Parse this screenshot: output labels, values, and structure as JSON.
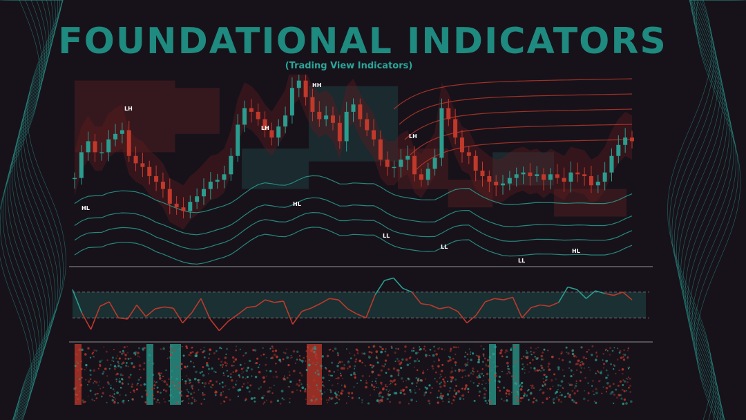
{
  "header": {
    "title": "FOUNDATIONAL INDICATORS",
    "subtitle": "(Trading View Indicators)"
  },
  "colors": {
    "background": "#17121a",
    "accent": "#1f8a7f",
    "teal": "#2a9d8f",
    "red": "#c0392b"
  },
  "chart_data": [
    {
      "type": "line",
      "panel": "price",
      "series": [
        {
          "values": [
            46,
            60,
            66,
            60,
            60,
            67,
            70,
            72,
            58,
            54,
            52,
            47,
            44,
            40,
            32,
            30,
            28,
            33,
            36,
            40,
            44,
            45,
            48,
            58,
            75,
            84,
            82,
            78,
            72,
            68,
            74,
            80,
            95,
            99,
            90,
            82,
            78,
            80,
            76,
            66,
            82,
            86,
            78,
            72,
            67,
            56,
            52,
            52,
            56,
            58,
            48,
            45,
            51,
            57,
            84,
            78,
            68,
            60,
            58,
            50,
            47,
            44,
            42,
            43,
            46,
            48,
            49,
            47,
            48,
            45,
            48,
            46,
            44,
            49,
            48,
            47,
            42,
            44,
            49,
            58,
            64,
            68,
            66
          ]
        }
      ],
      "annotations": [
        "LH",
        "HL",
        "LH",
        "HL",
        "HH",
        "LH",
        "LL",
        "LL",
        "LL",
        "HL"
      ]
    },
    {
      "type": "line",
      "panel": "oscillator",
      "series": [
        {
          "values": [
            74,
            38,
            12,
            48,
            55,
            30,
            28,
            50,
            32,
            44,
            47,
            45,
            22,
            38,
            60,
            28,
            10,
            25,
            35,
            46,
            48,
            58,
            54,
            56,
            20,
            40,
            45,
            52,
            60,
            58,
            44,
            36,
            30,
            66,
            88,
            92,
            76,
            70,
            52,
            50,
            44,
            47,
            40,
            22,
            34,
            55,
            60,
            58,
            62,
            30,
            46,
            50,
            48,
            54,
            78,
            74,
            60,
            72,
            68,
            65,
            70,
            58
          ]
        }
      ]
    },
    {
      "type": "heatmap",
      "panel": "scatter-map"
    }
  ]
}
